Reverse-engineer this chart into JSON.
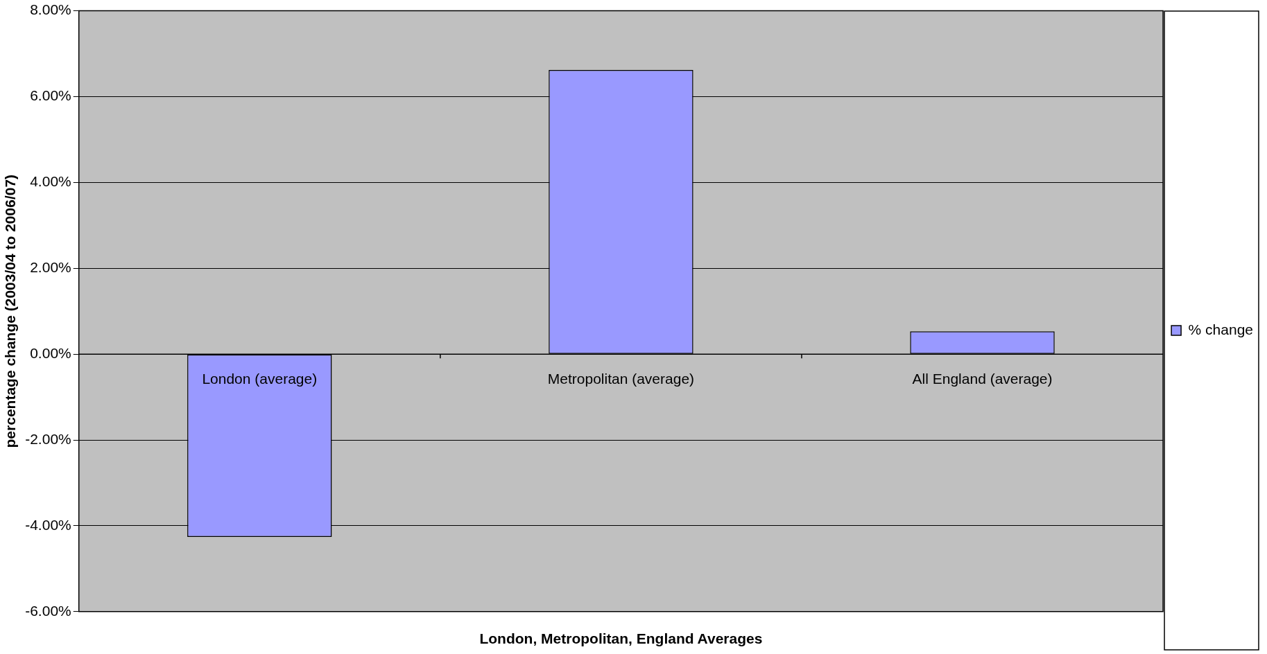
{
  "chart_data": {
    "type": "bar",
    "xlabel": "London, Metropolitan, England Averages",
    "ylabel": "percentage change (2003/04 to 2006/07)",
    "categories": [
      "London (average)",
      "Metropolitan (average)",
      "All England (average)"
    ],
    "series": [
      {
        "name": "% change",
        "color": "#9999ff",
        "values": [
          -4.26,
          6.62,
          0.53
        ]
      }
    ],
    "ylim": [
      -6,
      8
    ],
    "yticks": [
      {
        "value": -6,
        "label": "-6.00%"
      },
      {
        "value": -4,
        "label": "-4.00%"
      },
      {
        "value": -2,
        "label": "-2.00%"
      },
      {
        "value": 0,
        "label": "0.00%"
      },
      {
        "value": 2,
        "label": "2.00%"
      },
      {
        "value": 4,
        "label": "4.00%"
      },
      {
        "value": 6,
        "label": "6.00%"
      },
      {
        "value": 8,
        "label": "8.00%"
      }
    ],
    "grid": "y",
    "legend": "right"
  }
}
